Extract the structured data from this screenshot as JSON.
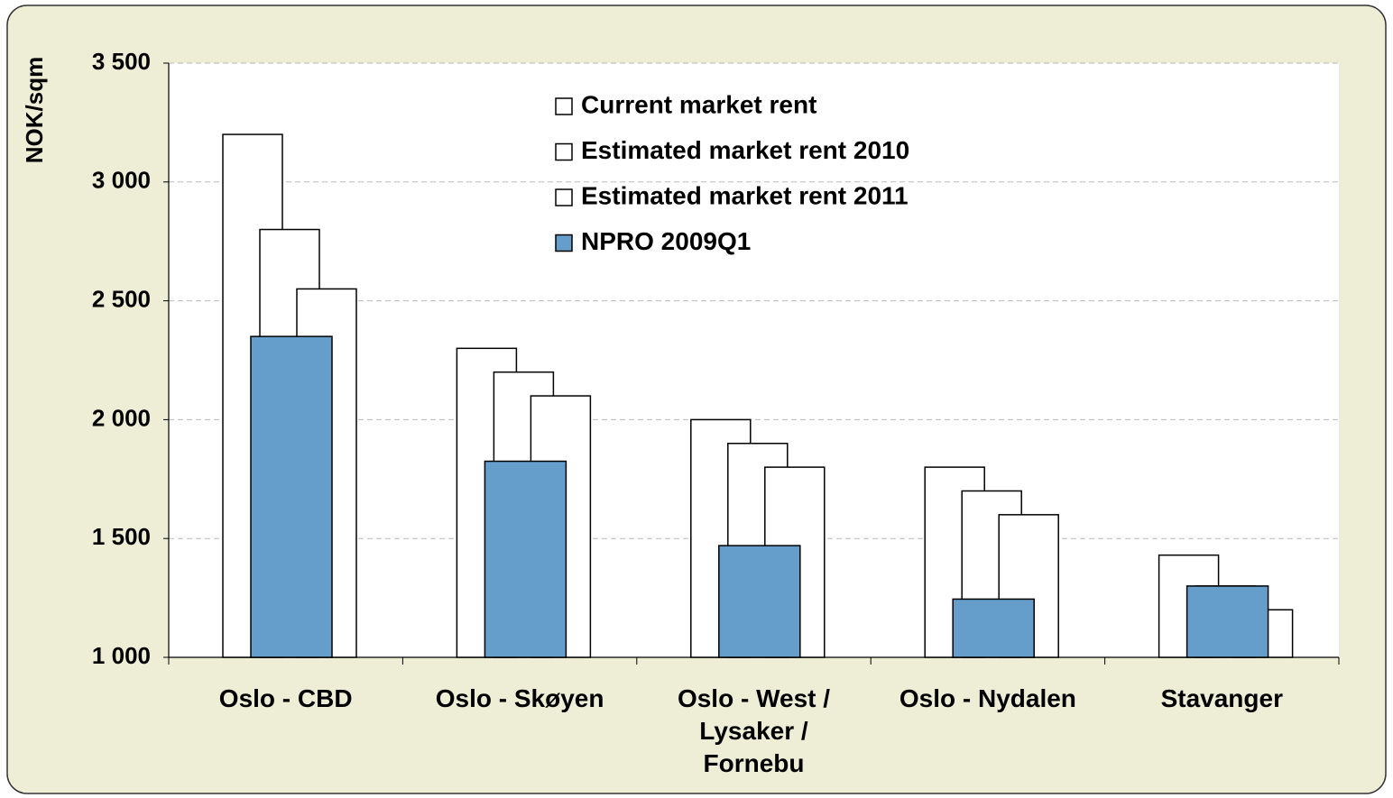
{
  "chart_data": {
    "type": "bar",
    "y_label": "NOK/sqm",
    "categories": [
      "Oslo - CBD",
      "Oslo - Skøyen",
      "Oslo - West / Lysaker / Fornebu",
      "Oslo - Nydalen",
      "Stavanger"
    ],
    "series": [
      {
        "name": "Current market rent",
        "color": "#ffffff",
        "values": [
          3200,
          2300,
          2000,
          1800,
          1430
        ]
      },
      {
        "name": "Estimated market rent 2010",
        "color": "#ffffff",
        "values": [
          2800,
          2200,
          1900,
          1700,
          1300
        ]
      },
      {
        "name": "Estimated market rent 2011",
        "color": "#ffffff",
        "values": [
          2550,
          2100,
          1800,
          1600,
          1200
        ]
      },
      {
        "name": "NPRO 2009Q1",
        "color": "#659ecb",
        "values": [
          2350,
          1825,
          1470,
          1245,
          1300
        ]
      }
    ],
    "ylim": [
      1000,
      3500
    ],
    "yticks": [
      {
        "value": 1000,
        "label": "1 000"
      },
      {
        "value": 1500,
        "label": "1 500"
      },
      {
        "value": 2000,
        "label": "2 000"
      },
      {
        "value": 2500,
        "label": "2 500"
      },
      {
        "value": 3000,
        "label": "3 000"
      },
      {
        "value": 3500,
        "label": "3 500"
      }
    ],
    "grid": true
  }
}
